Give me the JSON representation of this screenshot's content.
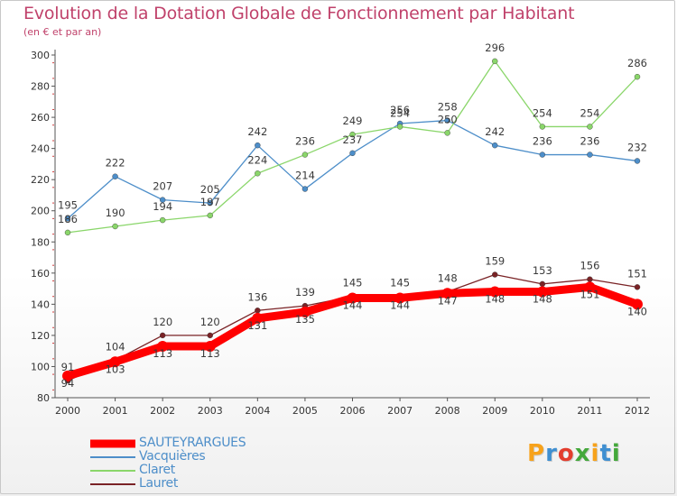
{
  "header": {
    "title": "Evolution de la Dotation Globale de Fonctionnement par Habitant",
    "subtitle": "(en € et par an)"
  },
  "logo": {
    "text": "Proxiti",
    "colors": [
      "#f7a21b",
      "#3f8fd1",
      "#e33d2d",
      "#44a83b",
      "#f7a21b",
      "#3f8fd1",
      "#44a83b"
    ]
  },
  "chart_data": {
    "type": "line",
    "x": [
      2000,
      2001,
      2002,
      2003,
      2004,
      2005,
      2006,
      2007,
      2008,
      2009,
      2010,
      2011,
      2012
    ],
    "ylim": [
      80,
      300
    ],
    "yticks": [
      80,
      100,
      120,
      140,
      160,
      180,
      200,
      220,
      240,
      260,
      280,
      300
    ],
    "grid": false,
    "legend_position": "bottom-left",
    "series": [
      {
        "name": "SAUTEYRARGUES",
        "color": "#ff0000",
        "values": [
          94,
          103,
          113,
          113,
          131,
          135,
          144,
          144,
          147,
          148,
          148,
          151,
          140
        ]
      },
      {
        "name": "Vacquières",
        "color": "#4d8ec9",
        "values": [
          195,
          222,
          207,
          205,
          242,
          214,
          237,
          256,
          258,
          242,
          236,
          236,
          232
        ]
      },
      {
        "name": "Claret",
        "color": "#8ad66a",
        "values": [
          186,
          190,
          194,
          197,
          224,
          236,
          249,
          254,
          250,
          296,
          254,
          254,
          286
        ]
      },
      {
        "name": "Lauret",
        "color": "#7a2326",
        "values": [
          91,
          104,
          120,
          120,
          136,
          139,
          145,
          145,
          148,
          159,
          153,
          156,
          151
        ]
      }
    ]
  }
}
